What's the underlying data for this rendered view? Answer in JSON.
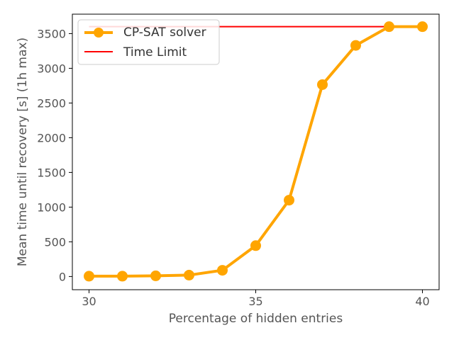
{
  "chart_data": {
    "type": "line",
    "xlabel": "Percentage of hidden entries",
    "ylabel": "Mean time until recovery [s] (1h max)",
    "xlim": [
      29.5,
      40.5
    ],
    "ylim": [
      -190,
      3780
    ],
    "xticks": [
      30,
      35,
      40
    ],
    "yticks": [
      0,
      500,
      1000,
      1500,
      2000,
      2500,
      3000,
      3500
    ],
    "legend_position": "top-left",
    "grid": false,
    "series": [
      {
        "name": "CP-SAT solver",
        "color": "#ffa500",
        "marker": "circle",
        "x": [
          30,
          31,
          32,
          33,
          34,
          35,
          36,
          37,
          38,
          39,
          40
        ],
        "y": [
          5,
          5,
          10,
          20,
          90,
          445,
          1100,
          2765,
          3330,
          3600,
          3600
        ]
      },
      {
        "name": "Time Limit",
        "color": "#ff0000",
        "marker": "none",
        "x": [
          30,
          40
        ],
        "y": [
          3600,
          3600
        ]
      }
    ]
  }
}
